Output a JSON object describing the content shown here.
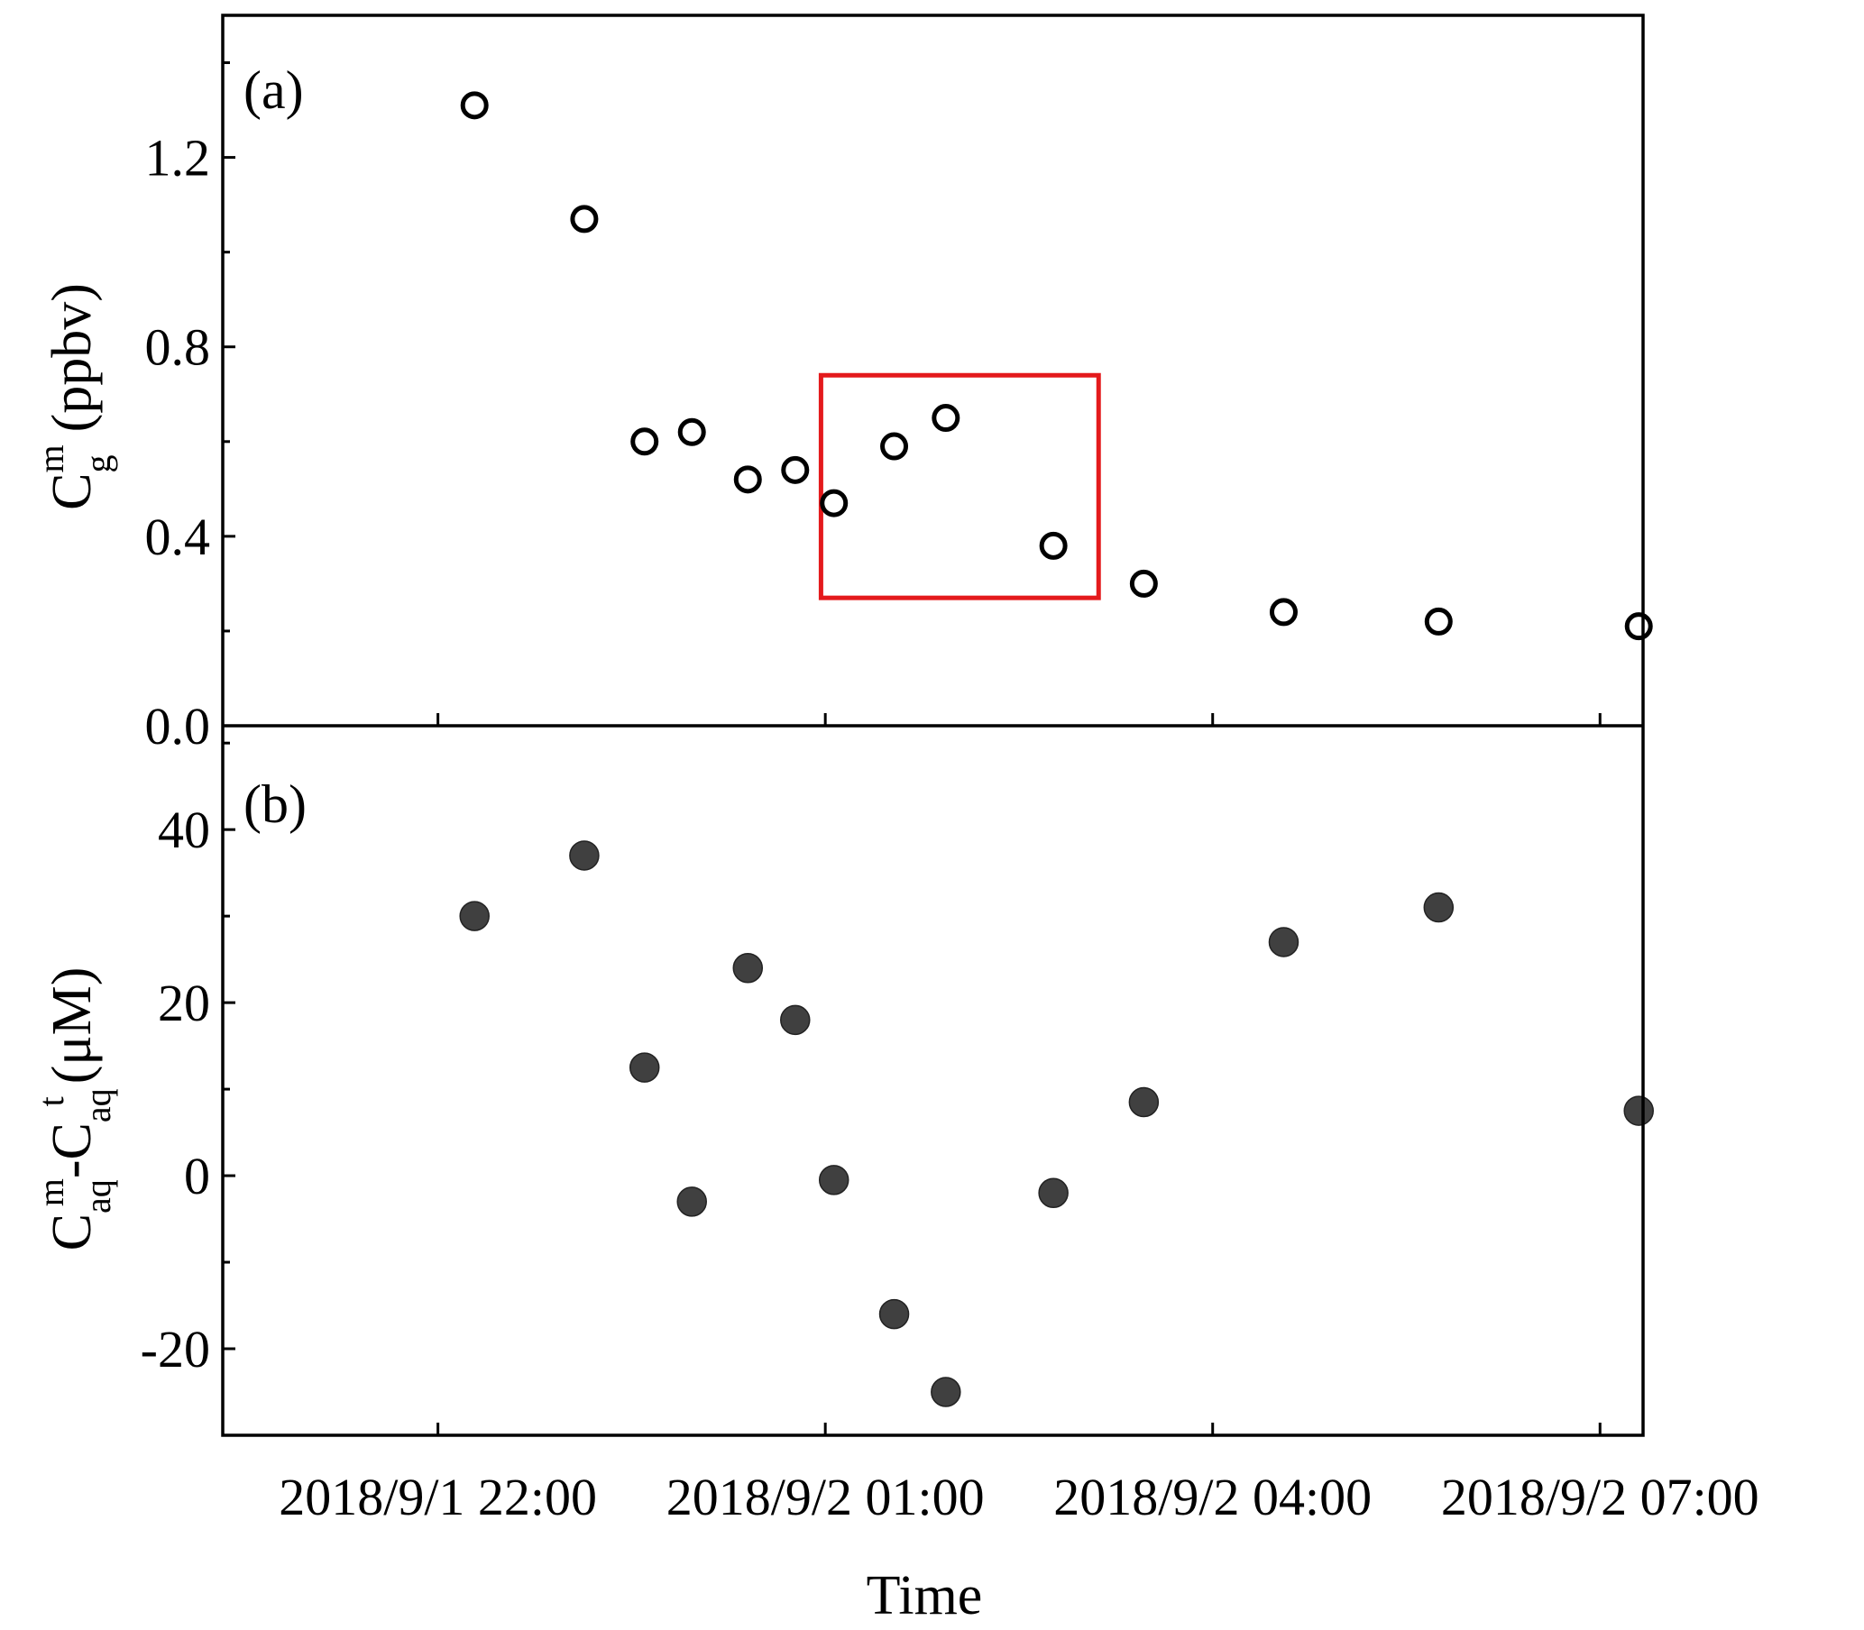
{
  "chart_data": [
    {
      "type": "scatter",
      "panel_label": "(a)",
      "ylabel": {
        "main": "C",
        "sub": "g",
        "sup": "m",
        "rest": "(ppbv)"
      },
      "ylim": [
        0.0,
        1.5
      ],
      "yticks": [
        0.0,
        0.4,
        0.8,
        1.2
      ],
      "ytick_labels": [
        "0.0",
        "0.4",
        "0.8",
        "1.2"
      ],
      "marker": "open-circle",
      "series": [
        {
          "x": [
            "2018-09-01 22:17",
            "2018-09-01 23:08",
            "2018-09-01 23:36",
            "2018-09-01 23:58",
            "2018-09-02 00:24",
            "2018-09-02 00:46",
            "2018-09-02 01:04",
            "2018-09-02 01:32",
            "2018-09-02 01:56",
            "2018-09-02 02:46",
            "2018-09-02 03:28",
            "2018-09-02 04:33",
            "2018-09-02 05:45",
            "2018-09-02 07:18"
          ],
          "y": [
            1.31,
            1.07,
            0.6,
            0.62,
            0.52,
            0.54,
            0.47,
            0.59,
            0.65,
            0.38,
            0.3,
            0.24,
            0.22,
            0.21
          ]
        }
      ],
      "highlight_box": {
        "x_range": [
          "2018-09-02 00:58",
          "2018-09-02 03:07"
        ],
        "y_range": [
          0.27,
          0.74
        ],
        "color": "#e41a1c"
      }
    },
    {
      "type": "scatter",
      "panel_label": "(b)",
      "ylabel": {
        "main1": "C",
        "sub1": "aq",
        "sup1": "m",
        "dash": "-C",
        "sub2": "aq",
        "sup2": "t",
        "rest": "(μM)"
      },
      "ylim": [
        -30,
        52
      ],
      "yticks": [
        -20,
        0,
        20,
        40
      ],
      "ytick_labels": [
        "-20",
        "0",
        "20",
        "40"
      ],
      "marker": "filled-circle",
      "marker_color": "#404040",
      "series": [
        {
          "x": [
            "2018-09-01 22:17",
            "2018-09-01 23:08",
            "2018-09-01 23:36",
            "2018-09-01 23:58",
            "2018-09-02 00:24",
            "2018-09-02 00:46",
            "2018-09-02 01:04",
            "2018-09-02 01:32",
            "2018-09-02 01:56",
            "2018-09-02 02:46",
            "2018-09-02 03:28",
            "2018-09-02 04:33",
            "2018-09-02 05:45",
            "2018-09-02 07:18"
          ],
          "y": [
            30,
            37,
            12.5,
            -3,
            24,
            18,
            -0.5,
            -16,
            -25,
            -2,
            8.5,
            27,
            31,
            7.5
          ]
        }
      ]
    }
  ],
  "x_axis": {
    "title": "Time",
    "range": [
      "2018-09-01 20:20",
      "2018-09-02 07:20"
    ],
    "tick_positions": [
      "2018-09-01 22:00",
      "2018-09-02 01:00",
      "2018-09-02 04:00",
      "2018-09-02 07:00"
    ],
    "tick_labels": [
      "2018/9/1 22:00",
      "2018/9/2 01:00",
      "2018/9/2 04:00",
      "2018/9/2 07:00"
    ]
  },
  "colors": {
    "axis": "#000000",
    "open_marker": "#000000",
    "filled_marker": "#404040",
    "highlight": "#e41a1c"
  }
}
